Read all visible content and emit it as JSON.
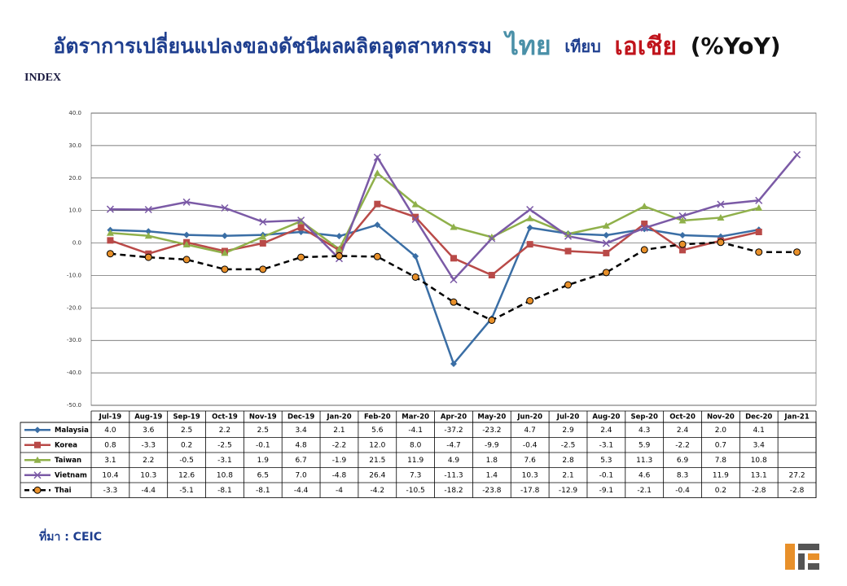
{
  "chart_data": {
    "type": "line",
    "title": {
      "prefix": "อัตราการเปลี่ยนแปลงของดัชนีผลผลิตอุตสาหกรรม",
      "thai": "ไทย",
      "mid": "เทียบ",
      "asia": "เอเชีย",
      "suffix": "(%YoY)"
    },
    "title_colors": {
      "prefix": "#1f3f8f",
      "thai": "#4a90a8",
      "mid": "#1f3f8f",
      "asia": "#c0141c",
      "suffix": "#111111"
    },
    "y_label": "INDEX",
    "source": "ที่มา : CEIC",
    "categories": [
      "Jul-19",
      "Aug-19",
      "Sep-19",
      "Oct-19",
      "Nov-19",
      "Dec-19",
      "Jan-20",
      "Feb-20",
      "Mar-20",
      "Apr-20",
      "May-20",
      "Jun-20",
      "Jul-20",
      "Aug-20",
      "Sep-20",
      "Oct-20",
      "Nov-20",
      "Dec-20",
      "Jan-21"
    ],
    "ylim": [
      -50,
      40
    ],
    "yticks": [
      {
        "value": -50,
        "label": "-50.0"
      },
      {
        "value": -40,
        "label": "-40.0"
      },
      {
        "value": -30,
        "label": "-30.0"
      },
      {
        "value": -20,
        "label": "-20.0"
      },
      {
        "value": -10,
        "label": "-10.0"
      },
      {
        "value": 0,
        "label": "0.0"
      },
      {
        "value": 10,
        "label": "10.0"
      },
      {
        "value": 20,
        "label": "20.0"
      },
      {
        "value": 30,
        "label": "30.0"
      },
      {
        "value": 40,
        "label": "40.0"
      }
    ],
    "grid": true,
    "series": [
      {
        "name": "Malaysia",
        "color": "#3a6ea5",
        "marker": "diamond",
        "dashed": false,
        "values": [
          4.0,
          3.6,
          2.5,
          2.2,
          2.5,
          3.4,
          2.1,
          5.6,
          -4.1,
          -37.2,
          -23.2,
          4.7,
          2.9,
          2.4,
          4.3,
          2.4,
          2.0,
          4.1,
          null
        ],
        "value_labels": [
          "4.0",
          "3.6",
          "2.5",
          "2.2",
          "2.5",
          "3.4",
          "2.1",
          "5.6",
          "-4.1",
          "-37.2",
          "-23.2",
          "4.7",
          "2.9",
          "2.4",
          "4.3",
          "2.4",
          "2.0",
          "4.1",
          null
        ]
      },
      {
        "name": "Korea",
        "color": "#b94a48",
        "marker": "square",
        "dashed": false,
        "values": [
          0.8,
          -3.3,
          0.2,
          -2.5,
          -0.1,
          4.8,
          -2.2,
          12.0,
          8.0,
          -4.7,
          -9.9,
          -0.4,
          -2.5,
          -3.1,
          5.9,
          -2.2,
          0.7,
          3.4,
          null
        ],
        "value_labels": [
          "0.8",
          "-3.3",
          "0.2",
          "-2.5",
          "-0.1",
          "4.8",
          "-2.2",
          "12.0",
          "8.0",
          "-4.7",
          "-9.9",
          "-0.4",
          "-2.5",
          "-3.1",
          "5.9",
          "-2.2",
          "0.7",
          "3.4",
          null
        ]
      },
      {
        "name": "Taiwan",
        "color": "#8fb04a",
        "marker": "triangle",
        "dashed": false,
        "values": [
          3.1,
          2.2,
          -0.5,
          -3.1,
          1.9,
          6.7,
          -1.9,
          21.5,
          11.9,
          4.9,
          1.8,
          7.6,
          2.8,
          5.3,
          11.3,
          6.9,
          7.8,
          10.8,
          null
        ],
        "value_labels": [
          "3.1",
          "2.2",
          "-0.5",
          "-3.1",
          "1.9",
          "6.7",
          "-1.9",
          "21.5",
          "11.9",
          "4.9",
          "1.8",
          "7.6",
          "2.8",
          "5.3",
          "11.3",
          "6.9",
          "7.8",
          "10.8",
          null
        ]
      },
      {
        "name": "Vietnam",
        "color": "#7b5aa6",
        "marker": "x",
        "dashed": false,
        "values": [
          10.4,
          10.3,
          12.6,
          10.8,
          6.5,
          7.0,
          -4.8,
          26.4,
          7.3,
          -11.3,
          1.4,
          10.3,
          2.1,
          -0.1,
          4.6,
          8.3,
          11.9,
          13.1,
          27.2
        ],
        "value_labels": [
          "10.4",
          "10.3",
          "12.6",
          "10.8",
          "6.5",
          "7.0",
          "-4.8",
          "26.4",
          "7.3",
          "-11.3",
          "1.4",
          "10.3",
          "2.1",
          "-0.1",
          "4.6",
          "8.3",
          "11.9",
          "13.1",
          "27.2"
        ]
      },
      {
        "name": "Thai",
        "color": "#000000",
        "marker": "circle",
        "marker_color": "#e8902a",
        "dashed": true,
        "values": [
          -3.3,
          -4.4,
          -5.1,
          -8.1,
          -8.1,
          -4.4,
          -4,
          -4.2,
          -10.5,
          -18.2,
          -23.8,
          -17.8,
          -12.9,
          -9.1,
          -2.1,
          -0.4,
          0.2,
          -2.8,
          -2.8
        ],
        "value_labels": [
          "-3.3",
          "-4.4",
          "-5.1",
          "-8.1",
          "-8.1",
          "-4.4",
          "-4",
          "-4.2",
          "-10.5",
          "-18.2",
          "-23.8",
          "-17.8",
          "-12.9",
          "-9.1",
          "-2.1",
          "-0.4",
          "0.2",
          "-2.8",
          "-2.8"
        ]
      }
    ]
  }
}
